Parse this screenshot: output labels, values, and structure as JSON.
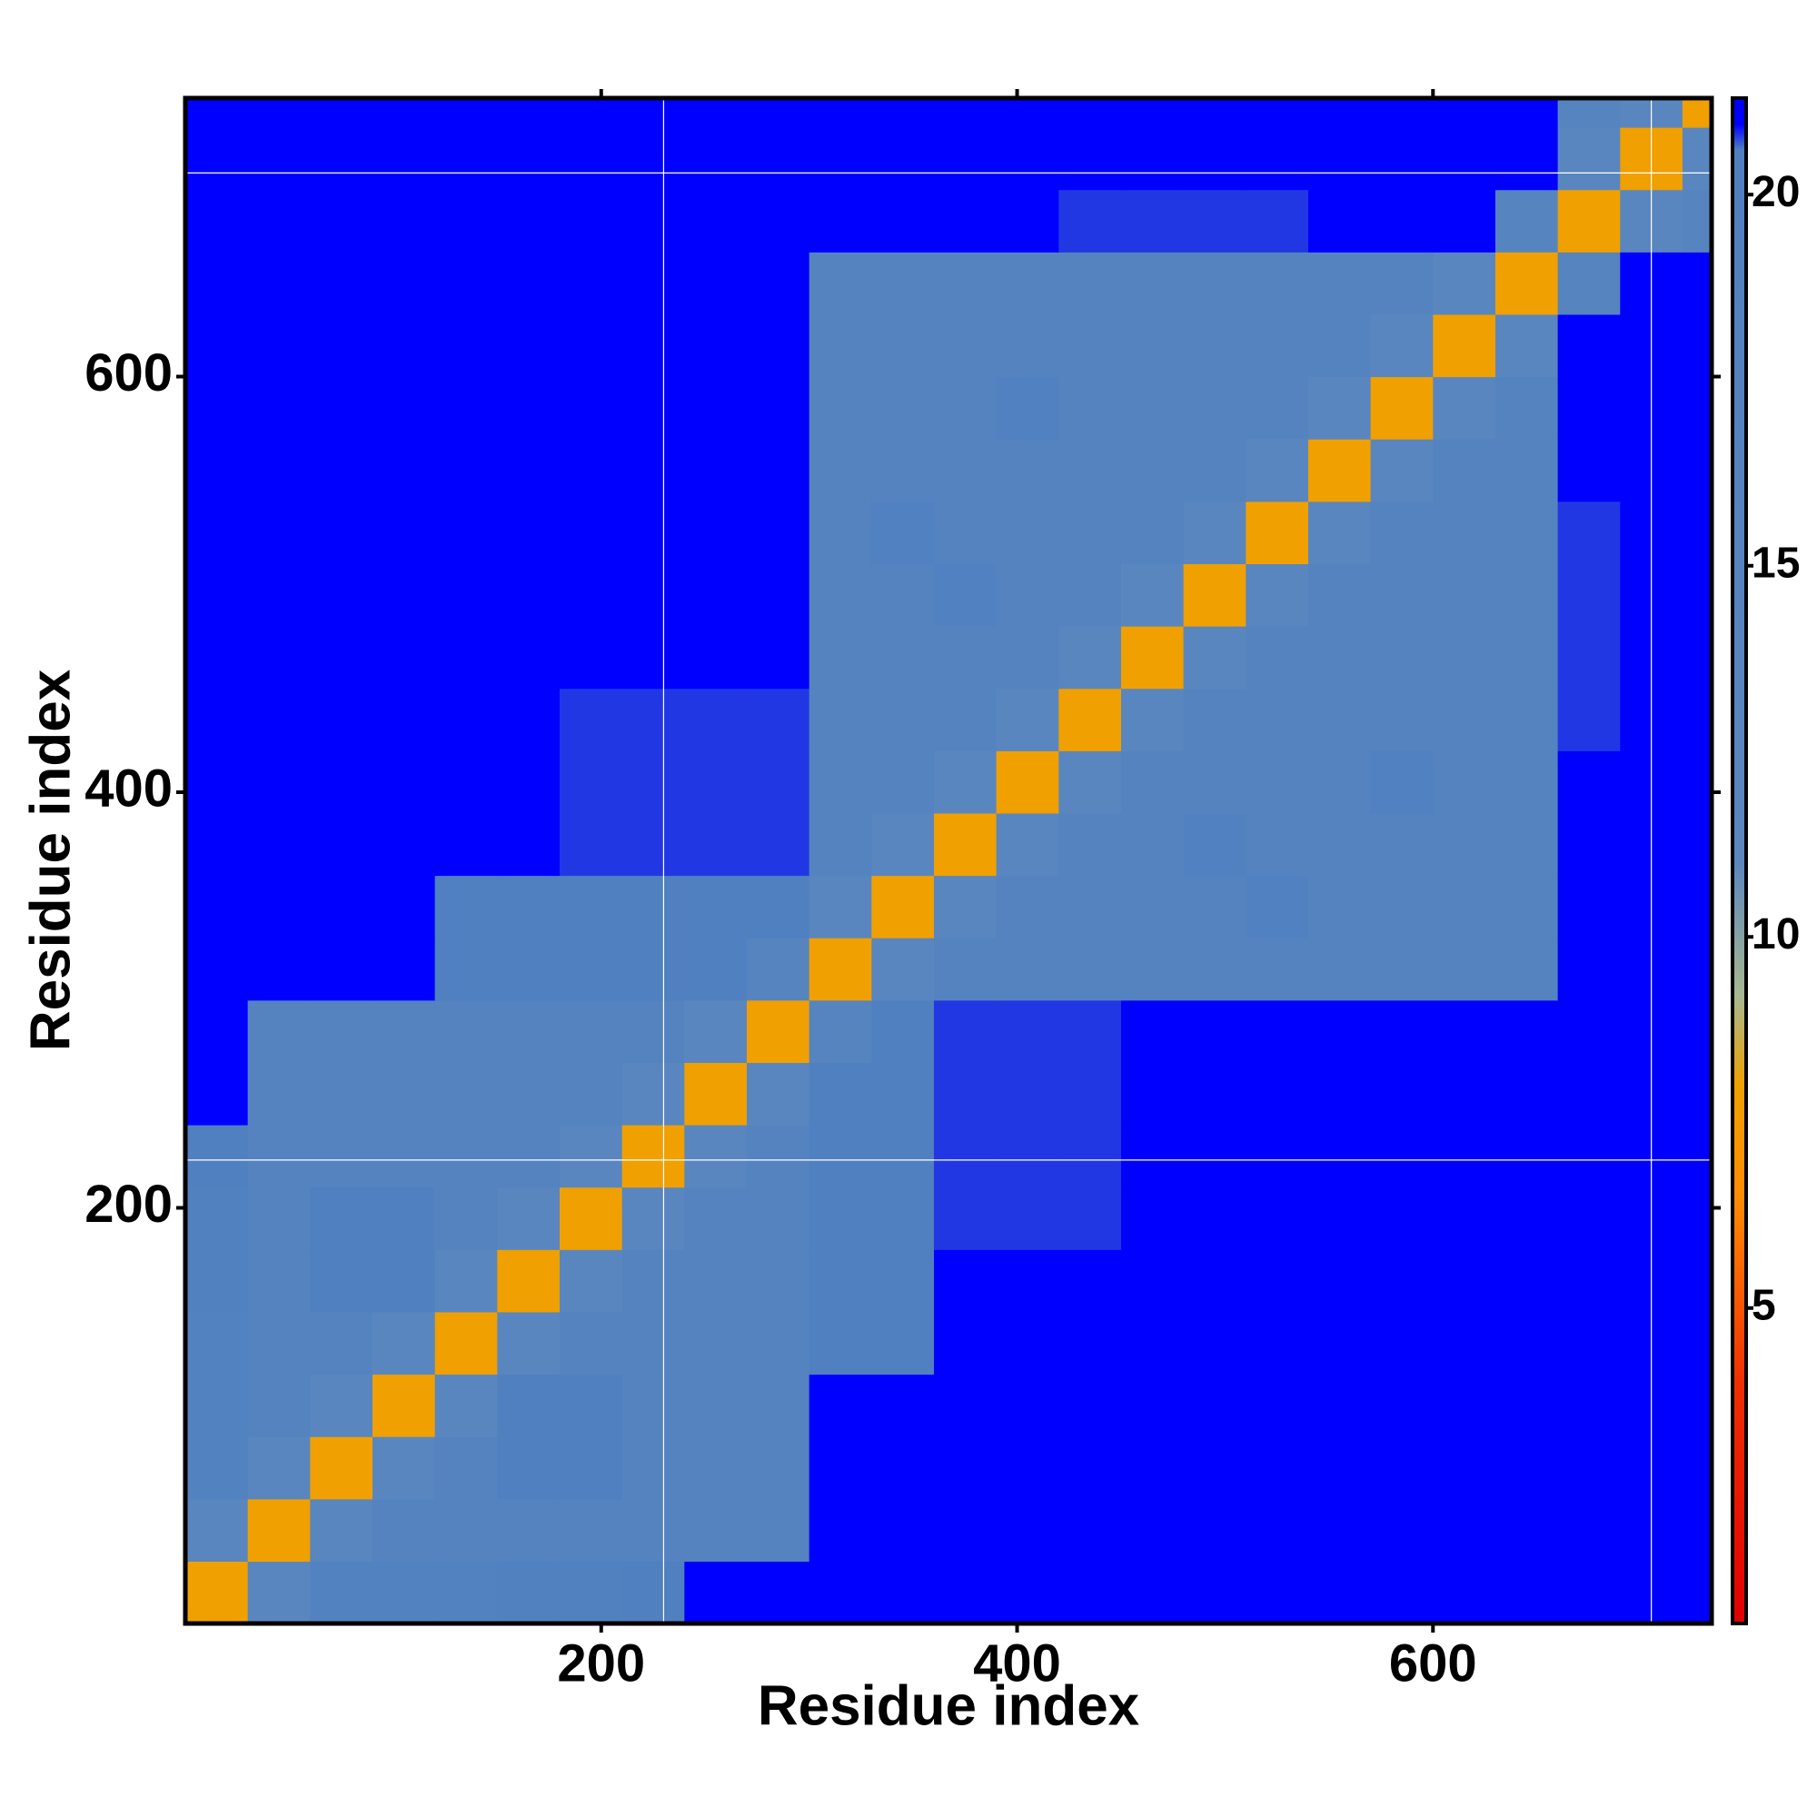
{
  "chart_data": {
    "type": "heatmap",
    "x_label": "Residue index",
    "y_label": "Residue index",
    "xlim": [
      0,
      734
    ],
    "ylim": [
      0,
      734
    ],
    "xticks": [
      200,
      400,
      600
    ],
    "yticks": [
      200,
      400,
      600
    ],
    "bins": [
      0,
      30,
      60,
      90,
      120,
      150,
      180,
      210,
      240,
      270,
      300,
      330,
      360,
      390,
      420,
      450,
      480,
      510,
      540,
      570,
      600,
      630,
      660,
      690,
      720,
      734
    ],
    "white_lines": {
      "x": [
        230,
        705
      ],
      "y": [
        223,
        698
      ]
    },
    "colorbar": {
      "lim": [
        0.75,
        21.3
      ],
      "ticks": [
        5,
        10,
        15,
        20
      ]
    },
    "colorscale": [
      [
        0.75,
        "#e00000"
      ],
      [
        4,
        "#f03000"
      ],
      [
        6.5,
        "#ff8c00"
      ],
      [
        8,
        "#f0a000"
      ],
      [
        9.2,
        "#a8b890"
      ],
      [
        11,
        "#5b87bf"
      ],
      [
        20.6,
        "#5080c0"
      ],
      [
        20.95,
        "#0000ff"
      ],
      [
        21.3,
        "#0000ff"
      ]
    ],
    "z": [
      [
        8,
        13,
        18,
        18,
        18,
        19,
        19,
        20,
        21,
        21,
        21,
        21,
        21,
        21,
        21,
        21,
        21,
        21,
        21,
        21,
        21,
        21,
        21,
        21,
        21
      ],
      [
        13,
        8,
        13,
        17,
        17,
        17,
        17,
        17,
        17,
        17,
        21,
        21,
        21,
        21,
        21,
        21,
        21,
        21,
        21,
        21,
        21,
        21,
        21,
        21,
        21
      ],
      [
        18,
        13,
        8,
        13,
        17,
        20,
        20,
        17,
        17,
        17,
        21,
        21,
        21,
        21,
        21,
        21,
        21,
        21,
        21,
        21,
        21,
        21,
        21,
        21,
        21
      ],
      [
        18,
        17,
        13,
        8,
        13,
        20,
        20,
        17,
        17,
        17,
        21,
        21,
        21,
        21,
        21,
        21,
        21,
        21,
        21,
        21,
        21,
        21,
        21,
        21,
        21
      ],
      [
        18,
        17,
        17,
        13,
        8,
        13,
        17,
        17,
        17,
        17,
        20.5,
        20.5,
        21,
        21,
        21,
        21,
        21,
        21,
        21,
        21,
        21,
        21,
        21,
        21,
        21
      ],
      [
        19,
        17,
        20,
        20,
        13,
        8,
        13,
        17,
        17,
        17,
        20.5,
        20.5,
        21,
        21,
        21,
        21,
        21,
        21,
        21,
        21,
        21,
        21,
        21,
        21,
        21
      ],
      [
        19,
        17,
        20,
        20,
        17,
        13,
        8,
        13,
        17,
        17,
        20.5,
        20.5,
        20.8,
        20.8,
        20.8,
        21,
        21,
        21,
        21,
        21,
        21,
        21,
        21,
        21,
        21
      ],
      [
        20,
        17,
        17,
        17,
        17,
        17,
        13,
        8,
        13,
        17,
        20.5,
        20.5,
        20.8,
        20.8,
        20.8,
        21,
        21,
        21,
        21,
        21,
        21,
        21,
        21,
        21,
        21
      ],
      [
        21,
        17,
        17,
        17,
        17,
        17,
        17,
        13,
        8,
        13,
        20.5,
        20.5,
        20.8,
        20.8,
        20.8,
        21,
        21,
        21,
        21,
        21,
        21,
        21,
        21,
        21,
        21
      ],
      [
        21,
        17,
        17,
        17,
        17,
        17,
        17,
        17,
        13,
        8,
        15,
        20.5,
        20.8,
        20.8,
        20.8,
        21,
        21,
        21,
        21,
        21,
        21,
        21,
        21,
        21,
        21
      ],
      [
        21,
        21,
        21,
        21,
        20.5,
        20.5,
        20.5,
        20.5,
        20.5,
        15,
        8,
        13,
        17,
        17,
        17,
        17,
        17,
        17,
        17,
        17,
        17,
        17,
        21,
        21,
        21
      ],
      [
        21,
        21,
        21,
        21,
        20.5,
        20.5,
        20.5,
        20.5,
        20.5,
        20.5,
        13,
        8,
        13,
        17,
        17,
        17,
        17,
        19.5,
        17,
        17,
        17,
        17,
        21,
        21,
        21
      ],
      [
        21,
        21,
        21,
        21,
        21,
        21,
        20.8,
        20.8,
        20.8,
        20.8,
        17,
        13,
        8,
        13,
        17,
        17,
        19.5,
        17,
        17,
        17,
        17,
        17,
        21,
        21,
        21
      ],
      [
        21,
        21,
        21,
        21,
        21,
        21,
        20.8,
        20.8,
        20.8,
        20.8,
        17,
        17,
        13,
        8,
        13,
        17,
        17,
        17,
        17,
        19.5,
        17,
        17,
        21,
        21,
        21
      ],
      [
        21,
        21,
        21,
        21,
        21,
        21,
        20.8,
        20.8,
        20.8,
        20.8,
        17,
        17,
        17,
        13,
        8,
        13,
        17,
        17,
        17,
        17,
        17,
        17,
        20.8,
        21,
        21
      ],
      [
        21,
        21,
        21,
        21,
        21,
        21,
        21,
        21,
        21,
        21,
        17,
        17,
        17,
        17,
        13,
        8,
        13,
        17,
        17,
        17,
        17,
        17,
        20.8,
        21,
        21
      ],
      [
        21,
        21,
        21,
        21,
        21,
        21,
        21,
        21,
        21,
        21,
        17,
        17,
        19.5,
        17,
        17,
        13,
        8,
        13,
        17,
        17,
        17,
        17,
        20.8,
        21,
        21
      ],
      [
        21,
        21,
        21,
        21,
        21,
        21,
        21,
        21,
        21,
        21,
        17,
        19.5,
        17,
        17,
        17,
        17,
        13,
        8,
        13,
        17,
        17,
        17,
        20.8,
        21,
        21
      ],
      [
        21,
        21,
        21,
        21,
        21,
        21,
        21,
        21,
        21,
        21,
        17,
        17,
        17,
        17,
        17,
        17,
        17,
        13,
        8,
        13,
        17,
        17,
        21,
        21,
        21
      ],
      [
        21,
        21,
        21,
        21,
        21,
        21,
        21,
        21,
        21,
        21,
        17,
        17,
        17,
        19.5,
        17,
        17,
        17,
        17,
        13,
        8,
        13,
        17,
        21,
        21,
        21
      ],
      [
        21,
        21,
        21,
        21,
        21,
        21,
        21,
        21,
        21,
        21,
        17,
        17,
        17,
        17,
        17,
        17,
        17,
        17,
        17,
        13,
        8,
        13,
        21,
        21,
        21
      ],
      [
        21,
        21,
        21,
        21,
        21,
        21,
        21,
        21,
        21,
        21,
        17,
        17,
        17,
        17,
        17,
        17,
        17,
        17,
        17,
        17,
        13,
        8,
        15,
        21,
        21
      ],
      [
        21,
        21,
        21,
        21,
        21,
        21,
        21,
        21,
        21,
        21,
        21,
        21,
        21,
        21,
        20.8,
        20.8,
        20.8,
        20.8,
        21,
        21,
        21,
        15,
        8,
        13,
        15
      ],
      [
        21,
        21,
        21,
        21,
        21,
        21,
        21,
        21,
        21,
        21,
        21,
        21,
        21,
        21,
        21,
        21,
        21,
        21,
        21,
        21,
        21,
        21,
        13,
        8,
        13
      ],
      [
        21,
        21,
        21,
        21,
        21,
        21,
        21,
        21,
        21,
        21,
        21,
        21,
        21,
        21,
        21,
        21,
        21,
        21,
        21,
        21,
        21,
        21,
        15,
        13,
        8
      ]
    ]
  }
}
